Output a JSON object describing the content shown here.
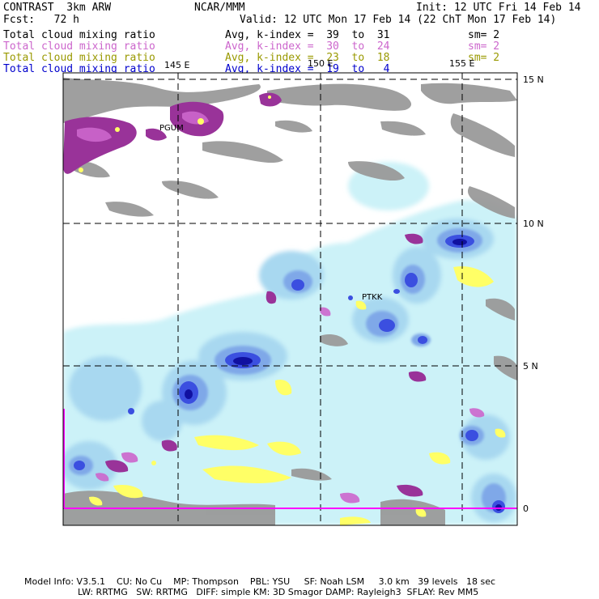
{
  "header": {
    "model": "CONTRAST  3km ARW",
    "center": "NCAR/MMM",
    "init": "Init: 12 UTC Fri 14 Feb 14",
    "fcst": "Fcst:   72 h",
    "valid": "Valid: 12 UTC Mon 17 Feb 14 (22 ChT Mon 17 Feb 14)"
  },
  "legend": [
    {
      "field": "Total cloud mixing ratio",
      "avg": "Avg, k-index =  39  to  31",
      "sm": "sm= 2",
      "color": "#000000"
    },
    {
      "field": "Total cloud mixing ratio",
      "avg": "Avg, k-index =  30  to  24",
      "sm": "sm= 2",
      "color": "#cc66cc"
    },
    {
      "field": "Total cloud mixing ratio",
      "avg": "Avg, k-index =  23  to  18",
      "sm": "sm= 2",
      "color": "#999900"
    },
    {
      "field": "Total cloud mixing ratio",
      "avg": "Avg, k-index =  19  to   4",
      "sm": "",
      "color": "#0000cc"
    }
  ],
  "map": {
    "lon_labels": [
      "145 E",
      "150 E",
      "155 E"
    ],
    "lat_labels": [
      "15 N",
      "10 N",
      "5 N",
      "0"
    ],
    "stations": [
      "PGUM",
      "PTKK"
    ],
    "colors": {
      "gray": "#9a9a9a",
      "purple": "#993399",
      "magenta": "#cc66cc",
      "yellow": "#ffff66",
      "light_cyan": "#ccf2f8",
      "pale_blue": "#a8d8f0",
      "mid_blue": "#7fa8e8",
      "blue": "#3b4fe0",
      "dark_blue": "#1010a0",
      "pink_axis": "#ff00ff"
    }
  },
  "footer": {
    "line1": "Model Info: V3.5.1    CU: No Cu    MP: Thompson    PBL: YSU     SF: Noah LSM     3.0 km   39 levels   18 sec",
    "line2": "LW: RRTMG   SW: RRTMG   DIFF: simple KM: 3D Smagor DAMP: Rayleigh3  SFLAY: Rev MM5"
  }
}
